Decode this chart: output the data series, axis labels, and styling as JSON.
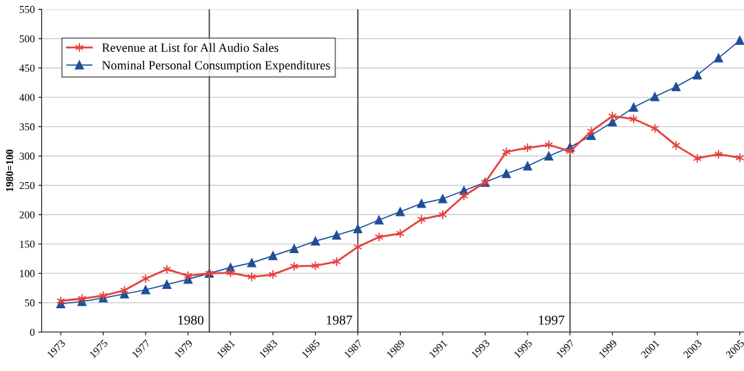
{
  "chart_data": {
    "type": "line",
    "ylabel": "1980=100",
    "x": [
      1973,
      1974,
      1975,
      1976,
      1977,
      1978,
      1979,
      1980,
      1981,
      1982,
      1983,
      1984,
      1985,
      1986,
      1987,
      1988,
      1989,
      1990,
      1991,
      1992,
      1993,
      1994,
      1995,
      1996,
      1997,
      1998,
      1999,
      2000,
      2001,
      2002,
      2003,
      2004,
      2005
    ],
    "series": [
      {
        "name": "Revenue at List for All Audio Sales",
        "color": "#e5433d",
        "marker": "cross",
        "values": [
          53,
          57,
          62,
          71,
          91,
          107,
          96,
          100,
          101,
          94,
          98,
          112,
          113,
          120,
          145,
          162,
          168,
          192,
          200,
          232,
          255,
          307,
          314,
          319,
          308,
          342,
          368,
          363,
          347,
          318,
          296,
          303,
          297
        ]
      },
      {
        "name": "Nominal Personal Consumption Expenditures",
        "color": "#1f4e99",
        "marker": "triangle",
        "values": [
          48,
          52,
          58,
          65,
          72,
          81,
          90,
          100,
          110,
          118,
          130,
          142,
          155,
          165,
          176,
          191,
          205,
          219,
          227,
          241,
          255,
          270,
          283,
          300,
          315,
          335,
          358,
          383,
          401,
          418,
          438,
          467,
          497
        ]
      }
    ],
    "xlim": [
      1972.1,
      2005.2
    ],
    "xticks": [
      1973,
      1975,
      1977,
      1979,
      1981,
      1983,
      1985,
      1987,
      1989,
      1991,
      1993,
      1995,
      1997,
      1999,
      2001,
      2003,
      2005
    ],
    "ylim": [
      0,
      550
    ],
    "yticks": [
      0,
      50,
      100,
      150,
      200,
      250,
      300,
      350,
      400,
      450,
      500,
      550
    ],
    "ref_lines": [
      {
        "axis": "x",
        "value": 1980,
        "label": "1980",
        "color": "#333333"
      },
      {
        "axis": "x",
        "value": 1987,
        "label": "1987",
        "color": "#333333"
      },
      {
        "axis": "x",
        "value": 1997,
        "label": "1997",
        "color": "#333333"
      }
    ],
    "grid": "y",
    "legend": "top left",
    "line_style": "solid"
  }
}
